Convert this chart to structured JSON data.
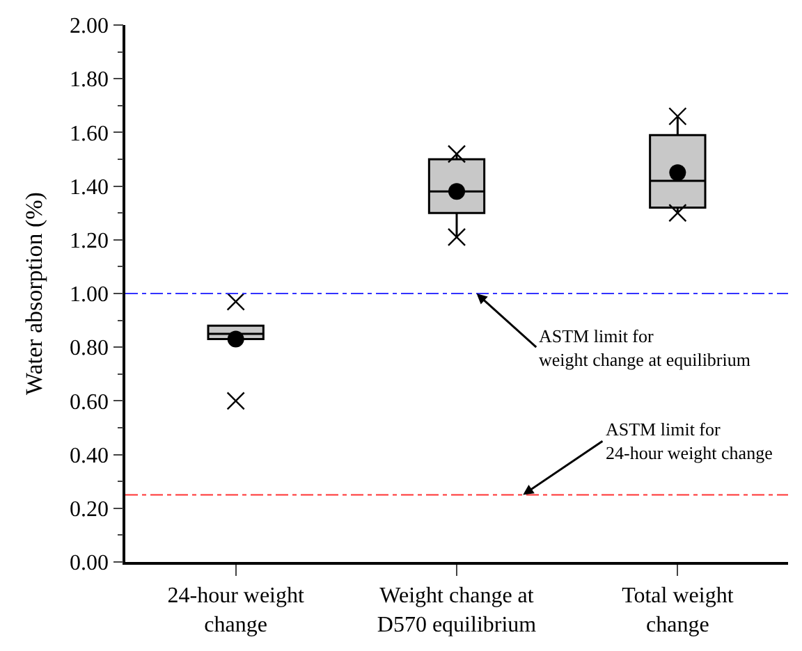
{
  "chart_data": {
    "type": "box",
    "ylabel": "Water absorption (%)",
    "categories": [
      "24-hour weight change",
      "Weight change at D570 equilibrium",
      "Total weight change"
    ],
    "boxes": [
      {
        "low": 0.83,
        "q1": 0.83,
        "median": 0.85,
        "q3": 0.88,
        "high": 0.88,
        "mean": 0.83,
        "outliers": [
          0.97,
          0.6
        ]
      },
      {
        "low": 1.21,
        "q1": 1.3,
        "median": 1.38,
        "q3": 1.5,
        "high": 1.52,
        "mean": 1.38,
        "outliers": [
          1.52,
          1.21
        ]
      },
      {
        "low": 1.3,
        "q1": 1.32,
        "median": 1.42,
        "q3": 1.59,
        "high": 1.66,
        "mean": 1.45,
        "outliers": [
          1.66,
          1.3
        ]
      }
    ],
    "color": "#c8c8c8",
    "ylim": [
      0,
      2
    ],
    "yticks": [
      {
        "value": 0,
        "label": "0.00"
      },
      {
        "value": 0.2,
        "label": "0.20"
      },
      {
        "value": 0.4,
        "label": "0.40"
      },
      {
        "value": 0.6,
        "label": "0.60"
      },
      {
        "value": 0.8,
        "label": "0.80"
      },
      {
        "value": 1,
        "label": "1.00"
      },
      {
        "value": 1.2,
        "label": "1.20"
      },
      {
        "value": 1.4,
        "label": "1.40"
      },
      {
        "value": 1.6,
        "label": "1.60"
      },
      {
        "value": 1.8,
        "label": "1.80"
      },
      {
        "value": 2,
        "label": "2.00"
      }
    ],
    "ref_lines": [
      {
        "axis": "y",
        "value": 1.0,
        "label": "ASTM limit for\nweight change at equilibrium",
        "color": "#3333ff",
        "line_style": "dashdot"
      },
      {
        "axis": "y",
        "value": 0.25,
        "label": "ASTM limit for\n24-hour weight change",
        "color": "#ff3333",
        "line_style": "dashdot"
      }
    ]
  }
}
